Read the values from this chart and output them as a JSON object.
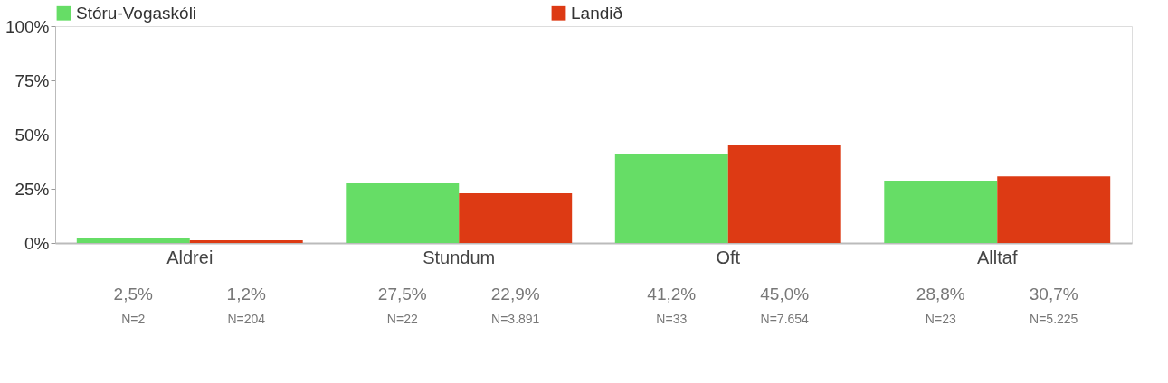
{
  "chart_data": {
    "type": "bar",
    "categories": [
      "Aldrei",
      "Stundum",
      "Oft",
      "Alltaf"
    ],
    "series": [
      {
        "name": "Stóru-Vogaskóli",
        "color": "#66dd66",
        "values": [
          2.5,
          27.5,
          41.2,
          28.8
        ],
        "value_labels": [
          "2,5%",
          "27,5%",
          "41,2%",
          "28,8%"
        ]
      },
      {
        "name": "Landið",
        "color": "#dd3a14",
        "values": [
          1.2,
          22.9,
          45.0,
          30.7
        ],
        "value_labels": [
          "1,2%",
          "22,9%",
          "45,0%",
          "30,7%"
        ]
      }
    ],
    "annotations": [
      "N=2",
      "N=22",
      "N=33",
      "N=23",
      "N=204",
      "N=3.891",
      "N=7.654",
      "N=5.225"
    ],
    "ylim": [
      0,
      100
    ],
    "yticks": [
      {
        "value": 0,
        "label": "0%"
      },
      {
        "value": 25,
        "label": "25%"
      },
      {
        "value": 50,
        "label": "50%"
      },
      {
        "value": 75,
        "label": "75%"
      },
      {
        "value": 100,
        "label": "100%"
      }
    ],
    "grid": false,
    "legend": "top"
  }
}
